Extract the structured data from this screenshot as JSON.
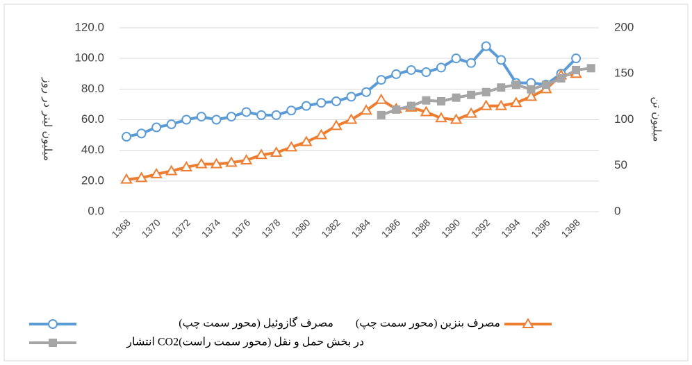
{
  "chart_data": {
    "type": "line",
    "y_label": "میلیون لیتر در روز",
    "y2_label": "میلیون تن",
    "categories": [
      "1368",
      null,
      "1370",
      null,
      "1372",
      null,
      "1374",
      null,
      "1376",
      null,
      "1378",
      null,
      "1380",
      null,
      "1382",
      null,
      "1384",
      null,
      "1386",
      null,
      "1388",
      null,
      "1390",
      null,
      "1392",
      null,
      "1394",
      null,
      "1396",
      null,
      "1398",
      null
    ],
    "series": [
      {
        "name": "مصرف گازوئیل (محور سمت چپ)",
        "color": "#5b9bd5",
        "marker": "circle",
        "values": [
          48.9,
          51,
          55,
          57,
          60,
          62,
          60,
          62,
          65,
          63,
          63,
          66,
          69,
          71,
          72,
          75,
          78,
          86,
          89.7,
          92.4,
          91,
          94,
          100,
          97,
          108,
          99,
          84,
          84,
          83,
          90,
          100,
          null
        ]
      },
      {
        "name": "مصرف بنزین (محور سمت چپ)",
        "color": "#ed7d31",
        "marker": "triangle",
        "values": [
          21,
          22,
          24.5,
          26.5,
          29,
          31,
          31,
          32,
          33.5,
          37,
          38.5,
          42,
          45.5,
          50,
          56,
          60,
          66,
          73,
          67,
          68,
          65,
          61,
          60,
          64,
          69,
          69,
          71,
          75,
          80,
          89,
          90,
          null
        ]
      },
      {
        "name": "انتشار  CO2در بخش حمل و نقل (محور سمت راست)",
        "color": "#a5a5a5",
        "marker": "square",
        "axis": "y2",
        "values": [
          null,
          null,
          null,
          null,
          null,
          null,
          null,
          null,
          null,
          null,
          null,
          null,
          null,
          null,
          null,
          null,
          null,
          105,
          111,
          115,
          121,
          120,
          124,
          127,
          130,
          135,
          138,
          133,
          138,
          145,
          154,
          156
        ]
      }
    ],
    "ylim": [
      0,
      120
    ],
    "yticks": [
      {
        "value": 0,
        "label": "0.0"
      },
      {
        "value": 20,
        "label": "20.0"
      },
      {
        "value": 40,
        "label": "40.0"
      },
      {
        "value": 60,
        "label": "60.0"
      },
      {
        "value": 80,
        "label": "80.0"
      },
      {
        "value": 100,
        "label": "100.0"
      },
      {
        "value": 120,
        "label": "120.0"
      }
    ],
    "y2lim": [
      0,
      200
    ],
    "y2ticks": [
      0,
      50,
      100,
      150,
      200
    ],
    "grid": true,
    "legend": "bottom"
  }
}
